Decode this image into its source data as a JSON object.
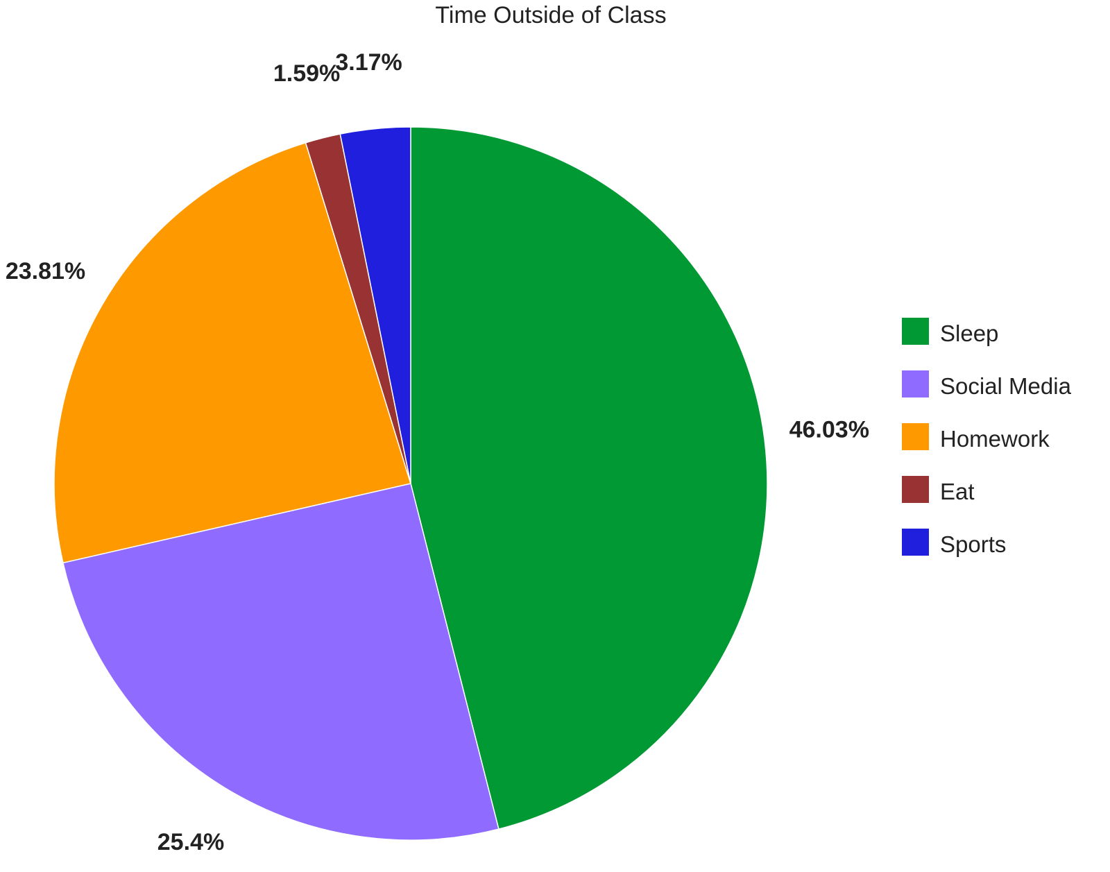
{
  "chart_data": {
    "type": "pie",
    "title": "Time Outside of Class",
    "legend_position": "right",
    "start_angle_deg": 0,
    "direction": "clockwise",
    "slices": [
      {
        "name": "Sleep",
        "value": 46.03,
        "label": "46.03%",
        "color": "#009933"
      },
      {
        "name": "Social Media",
        "value": 25.4,
        "label": "25.4%",
        "color": "#8f6cff"
      },
      {
        "name": "Homework",
        "value": 23.81,
        "label": "23.81%",
        "color": "#ff9900"
      },
      {
        "name": "Eat",
        "value": 1.59,
        "label": "1.59%",
        "color": "#993333"
      },
      {
        "name": "Sports",
        "value": 3.17,
        "label": "3.17%",
        "color": "#1f1fdd"
      }
    ]
  }
}
